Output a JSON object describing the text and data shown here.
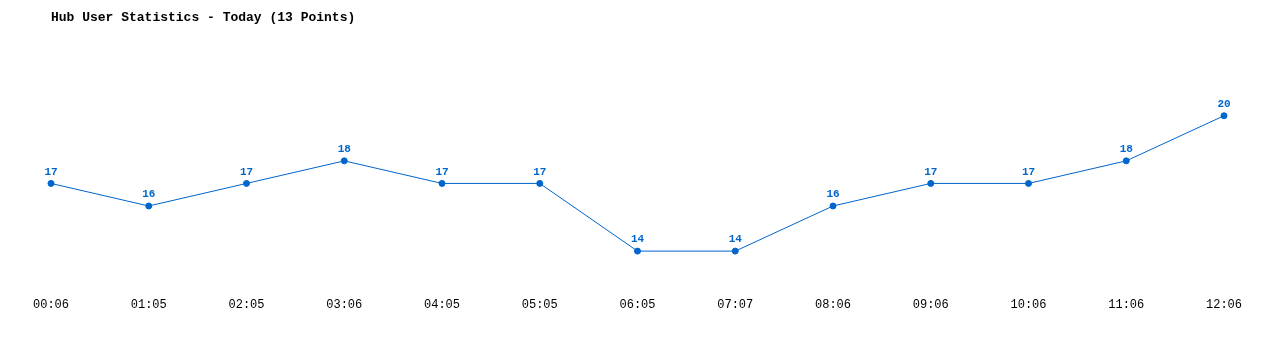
{
  "chart_data": {
    "type": "line",
    "title": "Hub User Statistics - Today (13 Points)",
    "categories": [
      "00:06",
      "01:05",
      "02:05",
      "03:06",
      "04:05",
      "05:05",
      "06:05",
      "07:07",
      "08:06",
      "09:06",
      "10:06",
      "11:06",
      "12:06"
    ],
    "series": [
      {
        "color": "#0066cc",
        "values": [
          17,
          16,
          17,
          18,
          17,
          17,
          14,
          14,
          16,
          17,
          17,
          18,
          20
        ]
      }
    ],
    "data_labels": true,
    "marker": "circle",
    "line_style": "solid",
    "grid": false,
    "legend": false
  }
}
